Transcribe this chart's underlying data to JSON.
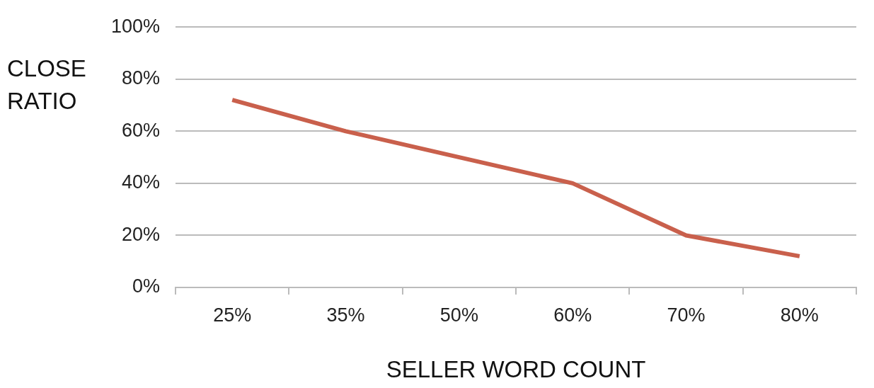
{
  "chart_data": {
    "type": "line",
    "xlabel": "SELLER WORD COUNT",
    "ylabel": "CLOSE RATIO",
    "categories": [
      "25%",
      "35%",
      "50%",
      "60%",
      "70%",
      "80%"
    ],
    "series": [
      {
        "color": "#c9604c",
        "values": [
          72,
          60,
          50,
          40,
          20,
          12
        ]
      }
    ],
    "ylim": [
      0,
      100
    ],
    "yticks": [
      {
        "value": 0,
        "label": "0%"
      },
      {
        "value": 20,
        "label": "20%"
      },
      {
        "value": 40,
        "label": "40%"
      },
      {
        "value": 60,
        "label": "60%"
      },
      {
        "value": 80,
        "label": "80%"
      },
      {
        "value": 100,
        "label": "100%"
      }
    ],
    "grid": "y",
    "legend": false,
    "marker": "none",
    "line_style": "solid"
  }
}
